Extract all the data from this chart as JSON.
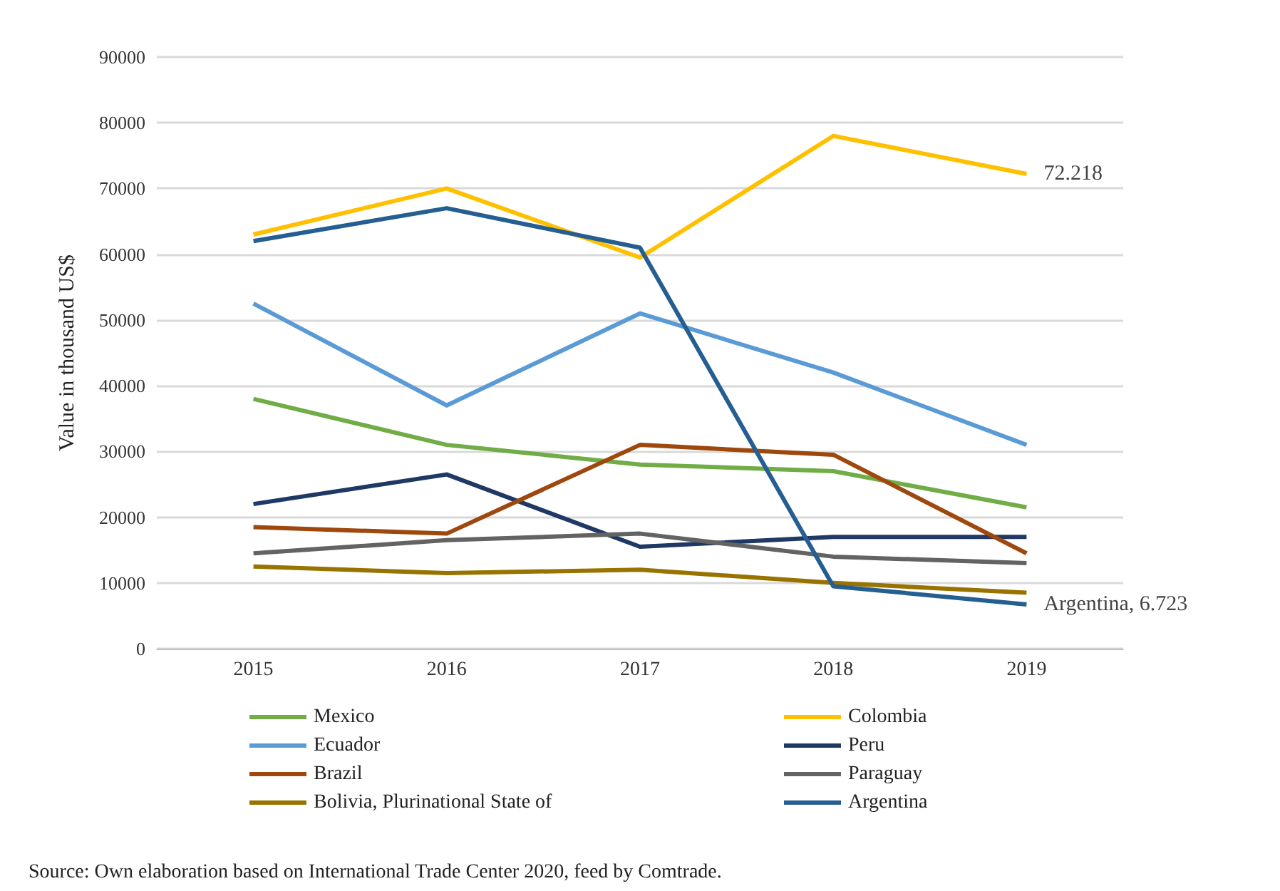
{
  "chart_data": {
    "type": "line",
    "ylabel": "Value in thousand US$",
    "categories": [
      "2015",
      "2016",
      "2017",
      "2018",
      "2019"
    ],
    "ylim": [
      0,
      90000
    ],
    "yticks": [
      0,
      10000,
      20000,
      30000,
      40000,
      50000,
      60000,
      70000,
      80000,
      90000
    ],
    "grid": "y",
    "legend": "bottom",
    "marker": "none",
    "line_style": "solid",
    "series": [
      {
        "name": "Mexico",
        "color": "#70ad47",
        "values": [
          38000,
          31000,
          28000,
          27000,
          21500
        ]
      },
      {
        "name": "Colombia",
        "color": "#ffc000",
        "values": [
          63000,
          70000,
          59500,
          78000,
          72218
        ]
      },
      {
        "name": "Ecuador",
        "color": "#5b9bd5",
        "values": [
          52500,
          37000,
          51000,
          42000,
          31000
        ]
      },
      {
        "name": "Peru",
        "color": "#1f3864",
        "values": [
          22000,
          26500,
          15500,
          17000,
          17000
        ]
      },
      {
        "name": "Brazil",
        "color": "#9e480e",
        "values": [
          18500,
          17500,
          31000,
          29500,
          14500
        ]
      },
      {
        "name": "Paraguay",
        "color": "#636363",
        "values": [
          14500,
          16500,
          17500,
          14000,
          13000
        ]
      },
      {
        "name": "Bolivia, Plurinational State of",
        "color": "#997300",
        "values": [
          12500,
          11500,
          12000,
          10000,
          8500
        ]
      },
      {
        "name": "Argentina",
        "color": "#255e91",
        "values": [
          62000,
          67000,
          61000,
          9500,
          6723
        ]
      }
    ],
    "annotations": [
      {
        "text": "72.218",
        "x": "2019",
        "y": 72218
      },
      {
        "text": "Argentina, 6.723",
        "x": "2019",
        "y": 6723
      },
      "Source: Own elaboration based on International Trade Center 2020, feed by Comtrade."
    ]
  }
}
